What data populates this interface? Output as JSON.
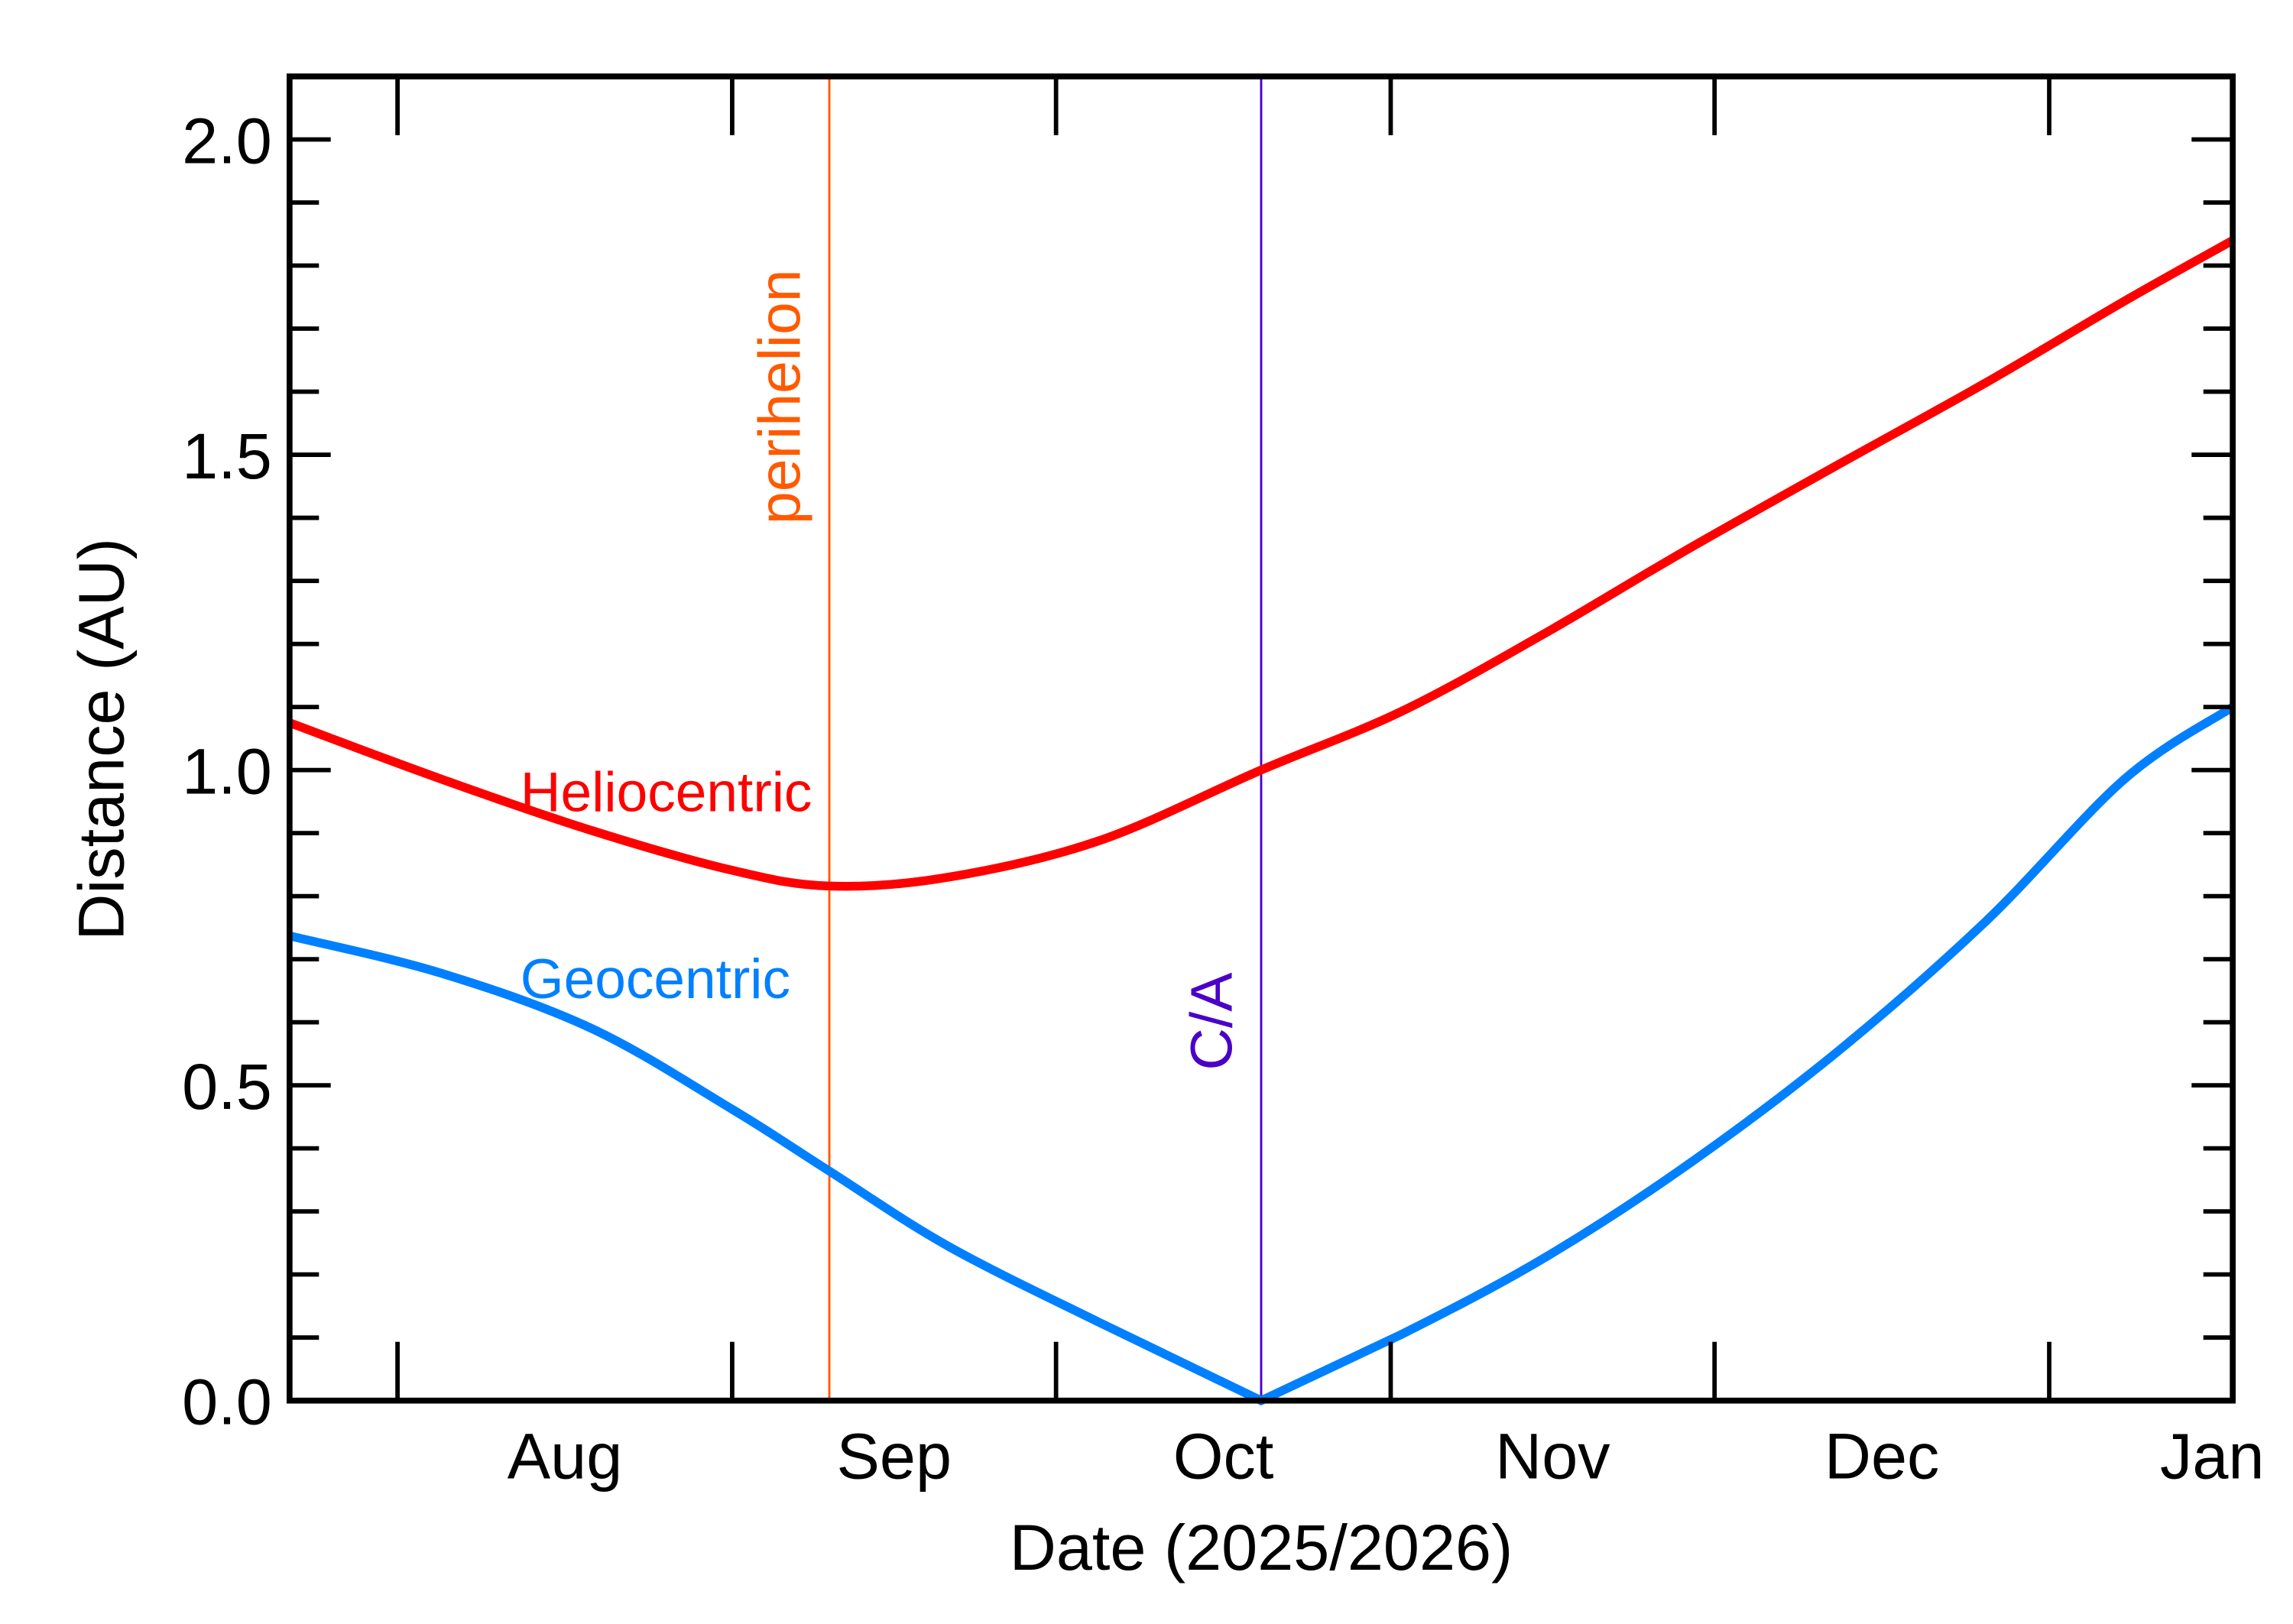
{
  "chart_data": {
    "type": "line",
    "xlabel": "Date (2025/2026)",
    "ylabel": "Distance (AU)",
    "xlim": [
      "2025-07-22",
      "2026-01-18"
    ],
    "ylim": [
      0,
      2.1
    ],
    "x_tick_labels": [
      "Aug",
      "Sep",
      "Oct",
      "Nov",
      "Dec",
      "Jan"
    ],
    "x_month_starts": [
      "2025-08-01",
      "2025-09-01",
      "2025-10-01",
      "2025-11-01",
      "2025-12-01",
      "2026-01-01"
    ],
    "y_ticks": [
      0.0,
      0.5,
      1.0,
      1.5,
      2.0
    ],
    "y_tick_labels": [
      "0.0",
      "0.5",
      "1.0",
      "1.5",
      "2.0"
    ],
    "grid": false,
    "series": [
      {
        "name": "Heliocentric",
        "color": "#ff0000",
        "x": [
          "2025-07-22",
          "2025-08-05",
          "2025-08-19",
          "2025-09-01",
          "2025-09-10",
          "2025-09-21",
          "2025-10-05",
          "2025-10-20",
          "2025-11-02",
          "2025-11-15",
          "2025-11-28",
          "2025-12-12",
          "2025-12-26",
          "2026-01-08",
          "2026-01-18"
        ],
        "y": [
          1.075,
          0.986,
          0.904,
          0.841,
          0.816,
          0.83,
          0.888,
          1.0,
          1.093,
          1.214,
          1.345,
          1.48,
          1.613,
          1.744,
          1.84
        ]
      },
      {
        "name": "Geocentric",
        "color": "#0080ff",
        "x": [
          "2025-07-22",
          "2025-08-05",
          "2025-08-19",
          "2025-09-01",
          "2025-09-10",
          "2025-09-21",
          "2025-10-05",
          "2025-10-20",
          "2025-11-02",
          "2025-11-15",
          "2025-11-28",
          "2025-12-12",
          "2025-12-26",
          "2026-01-08",
          "2026-01-18"
        ],
        "y": [
          0.737,
          0.678,
          0.59,
          0.462,
          0.364,
          0.245,
          0.124,
          0.0,
          0.105,
          0.224,
          0.368,
          0.548,
          0.758,
          0.986,
          1.1
        ]
      }
    ],
    "markers": [
      {
        "label": "perihelion",
        "date": "2025-09-10",
        "color": "#ff5a00"
      },
      {
        "label": "C/A",
        "date": "2025-10-20",
        "color": "#4b00c8"
      }
    ]
  }
}
